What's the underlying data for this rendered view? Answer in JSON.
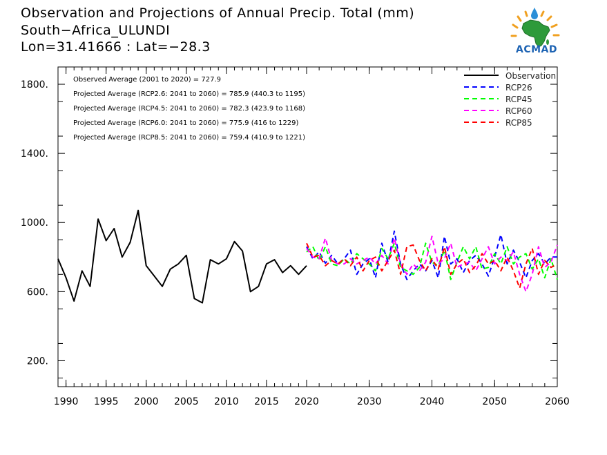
{
  "header": {
    "title_line1": "Observation and Projections of Annual Precip. Total (mm)",
    "title_line2": "South−Africa_ULUNDI",
    "title_line3": "Lon=31.41666 : Lat=−28.3"
  },
  "logo": {
    "text": "ACMAD",
    "icon": "acmad-africa-logo"
  },
  "annotations": [
    "Observed Average (2001 to 2020) = 727.9",
    "Projected Average (RCP2.6: 2041 to 2060) = 785.9 (440.3 to 1195)",
    "Projected Average (RCP4.5: 2041 to 2060) = 782.3 (423.9 to 1168)",
    "Projected Average (RCP6.0: 2041 to 2060) = 775.9 (416 to 1229)",
    "Projected Average (RCP8.5: 2041 to 2060) = 759.4 (410.9 to 1221)"
  ],
  "chart_data": {
    "type": "line",
    "title": "Observation and Projections of Annual Precip. Total (mm)",
    "xlim": [
      1989,
      2060
    ],
    "ylim": [
      50,
      1900
    ],
    "x_segments": [
      {
        "from": 1989,
        "to": 2020,
        "ticks": [
          1990,
          1995,
          2000,
          2005,
          2010,
          2015,
          2020
        ]
      },
      {
        "from": 2020,
        "to": 2060,
        "ticks": [
          2030,
          2040,
          2050,
          2060
        ]
      }
    ],
    "yticks": [
      200,
      600,
      1000,
      1400,
      1800
    ],
    "ytick_labels": [
      "200.",
      "600.",
      "1000.",
      "1400.",
      "1800."
    ],
    "legend_position": "top-right",
    "series": [
      {
        "name": "Observation",
        "color": "#000000",
        "dash": "solid",
        "x": [
          1989,
          1990,
          1991,
          1992,
          1993,
          1994,
          1995,
          1996,
          1997,
          1998,
          1999,
          2000,
          2001,
          2002,
          2003,
          2004,
          2005,
          2006,
          2007,
          2008,
          2009,
          2010,
          2011,
          2012,
          2013,
          2014,
          2015,
          2016,
          2017,
          2018,
          2019,
          2020
        ],
        "values": [
          790,
          680,
          545,
          720,
          630,
          1020,
          895,
          965,
          800,
          885,
          1070,
          750,
          690,
          630,
          730,
          760,
          810,
          560,
          535,
          785,
          760,
          790,
          890,
          835,
          600,
          630,
          760,
          785,
          710,
          750,
          700,
          750
        ]
      },
      {
        "name": "RCP26",
        "color": "#0000ff",
        "dash": "dashed",
        "x": [
          2020,
          2021,
          2022,
          2023,
          2024,
          2025,
          2026,
          2027,
          2028,
          2029,
          2030,
          2031,
          2032,
          2033,
          2034,
          2035,
          2036,
          2037,
          2038,
          2039,
          2040,
          2041,
          2042,
          2043,
          2044,
          2045,
          2046,
          2047,
          2048,
          2049,
          2050,
          2051,
          2052,
          2053,
          2054,
          2055,
          2056,
          2057,
          2058,
          2059,
          2060
        ],
        "values": [
          860,
          790,
          830,
          765,
          810,
          760,
          790,
          840,
          700,
          760,
          790,
          680,
          880,
          770,
          950,
          760,
          670,
          720,
          760,
          720,
          780,
          680,
          920,
          760,
          790,
          710,
          780,
          810,
          760,
          690,
          800,
          930,
          760,
          840,
          770,
          680,
          780,
          820,
          760,
          800,
          800
        ]
      },
      {
        "name": "RCP45",
        "color": "#00ff00",
        "dash": "dashed",
        "x": [
          2020,
          2021,
          2022,
          2023,
          2024,
          2025,
          2026,
          2027,
          2028,
          2029,
          2030,
          2031,
          2032,
          2033,
          2034,
          2035,
          2036,
          2037,
          2038,
          2039,
          2040,
          2041,
          2042,
          2043,
          2044,
          2045,
          2046,
          2047,
          2048,
          2049,
          2050,
          2051,
          2052,
          2053,
          2054,
          2055,
          2056,
          2057,
          2058,
          2059,
          2060
        ],
        "values": [
          830,
          860,
          780,
          860,
          760,
          750,
          790,
          760,
          820,
          790,
          760,
          720,
          850,
          790,
          880,
          740,
          720,
          700,
          740,
          880,
          770,
          750,
          840,
          670,
          770,
          860,
          790,
          860,
          730,
          740,
          820,
          760,
          860,
          760,
          800,
          820,
          730,
          790,
          680,
          790,
          670
        ]
      },
      {
        "name": "RCP60",
        "color": "#ff00ff",
        "dash": "dashed",
        "x": [
          2020,
          2021,
          2022,
          2023,
          2024,
          2025,
          2026,
          2027,
          2028,
          2029,
          2030,
          2031,
          2032,
          2033,
          2034,
          2035,
          2036,
          2037,
          2038,
          2039,
          2040,
          2041,
          2042,
          2043,
          2044,
          2045,
          2046,
          2047,
          2048,
          2049,
          2050,
          2051,
          2052,
          2053,
          2054,
          2055,
          2056,
          2057,
          2058,
          2059,
          2060
        ],
        "values": [
          850,
          800,
          790,
          910,
          780,
          760,
          760,
          790,
          760,
          780,
          800,
          760,
          810,
          760,
          910,
          760,
          700,
          760,
          720,
          770,
          920,
          760,
          790,
          880,
          740,
          760,
          770,
          720,
          790,
          860,
          760,
          800,
          780,
          830,
          700,
          600,
          700,
          860,
          740,
          770,
          870
        ]
      },
      {
        "name": "RCP85",
        "color": "#ff0000",
        "dash": "dashed",
        "x": [
          2020,
          2021,
          2022,
          2023,
          2024,
          2025,
          2026,
          2027,
          2028,
          2029,
          2030,
          2031,
          2032,
          2033,
          2034,
          2035,
          2036,
          2037,
          2038,
          2039,
          2040,
          2041,
          2042,
          2043,
          2044,
          2045,
          2046,
          2047,
          2048,
          2049,
          2050,
          2051,
          2052,
          2053,
          2054,
          2055,
          2056,
          2057,
          2058,
          2059,
          2060
        ],
        "values": [
          880,
          800,
          810,
          750,
          780,
          760,
          790,
          750,
          800,
          720,
          780,
          800,
          720,
          780,
          840,
          700,
          860,
          870,
          780,
          720,
          790,
          730,
          860,
          700,
          760,
          790,
          710,
          750,
          820,
          760,
          780,
          720,
          800,
          720,
          620,
          760,
          850,
          700,
          780,
          740,
          760
        ]
      }
    ]
  }
}
